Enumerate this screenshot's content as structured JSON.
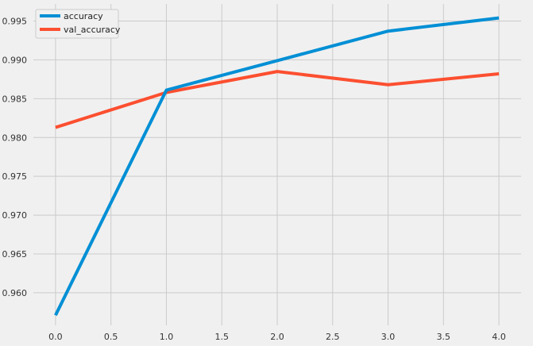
{
  "chart_data": {
    "type": "line",
    "title": "",
    "xlabel": "",
    "ylabel": "",
    "x": [
      0,
      1,
      2,
      3,
      4
    ],
    "xlim": [
      -0.2,
      4.2
    ],
    "ylim": [
      0.9558,
      0.9972
    ],
    "x_ticks": [
      0,
      0.5,
      1,
      1.5,
      2,
      2.5,
      3,
      3.5,
      4
    ],
    "x_tick_labels": [
      "0.0",
      "0.5",
      "1.0",
      "1.5",
      "2.0",
      "2.5",
      "3.0",
      "3.5",
      "4.0"
    ],
    "y_ticks": [
      0.96,
      0.965,
      0.97,
      0.975,
      0.98,
      0.985,
      0.99,
      0.995
    ],
    "y_tick_labels": [
      "0.960",
      "0.965",
      "0.970",
      "0.975",
      "0.980",
      "0.985",
      "0.990",
      "0.995"
    ],
    "grid": true,
    "legend_position": "top-left",
    "series": [
      {
        "name": "accuracy",
        "color": "#008fd5",
        "values": [
          0.9571,
          0.9861,
          0.9899,
          0.9937,
          0.9954
        ]
      },
      {
        "name": "val_accuracy",
        "color": "#fc4f30",
        "values": [
          0.9813,
          0.9858,
          0.9885,
          0.9868,
          0.9882
        ]
      }
    ]
  }
}
